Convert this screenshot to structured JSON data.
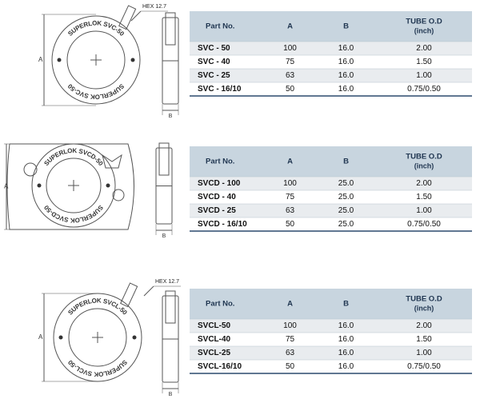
{
  "sections": [
    {
      "drawing": {
        "hex_label": "HEX 12.7",
        "dim_a": "A",
        "dim_b": "B",
        "engraving_top": "SUPERLOK SVC-50",
        "engraving_bottom": "SUPERLOK SVC-50"
      },
      "table": {
        "header": [
          "Part No.",
          "A",
          "B",
          "TUBE O.D"
        ],
        "header_unit": "(inch)",
        "rows": [
          [
            "SVC - 50",
            "100",
            "16.0",
            "2.00"
          ],
          [
            "SVC - 40",
            "75",
            "16.0",
            "1.50"
          ],
          [
            "SVC - 25",
            "63",
            "16.0",
            "1.00"
          ],
          [
            "SVC - 16/10",
            "50",
            "16.0",
            "0.75/0.50"
          ]
        ]
      }
    },
    {
      "drawing": {
        "dim_a": "A",
        "dim_b": "B",
        "engraving_top": "SUPERLOK SVCD-50",
        "engraving_bottom": "SUPERLOK SVCD-50"
      },
      "table": {
        "header": [
          "Part No.",
          "A",
          "B",
          "TUBE O.D"
        ],
        "header_unit": "(inch)",
        "rows": [
          [
            "SVCD - 100",
            "100",
            "25.0",
            "2.00"
          ],
          [
            "SVCD - 40",
            "75",
            "25.0",
            "1.50"
          ],
          [
            "SVCD - 25",
            "63",
            "25.0",
            "1.00"
          ],
          [
            "SVCD - 16/10",
            "50",
            "25.0",
            "0.75/0.50"
          ]
        ]
      }
    },
    {
      "drawing": {
        "hex_label": "HEX 12.7",
        "dim_a": "A",
        "dim_b": "B",
        "engraving_top": "SUPERLOK SVCL-50",
        "engraving_bottom": "SUPERLOK SVCL-50"
      },
      "table": {
        "header": [
          "Part No.",
          "A",
          "B",
          "TUBE O.D"
        ],
        "header_unit": "(inch)",
        "rows": [
          [
            "SVCL-50",
            "100",
            "16.0",
            "2.00"
          ],
          [
            "SVCL-40",
            "75",
            "16.0",
            "1.50"
          ],
          [
            "SVCL-25",
            "63",
            "16.0",
            "1.00"
          ],
          [
            "SVCL-16/10",
            "50",
            "16.0",
            "0.75/0.50"
          ]
        ]
      }
    }
  ]
}
